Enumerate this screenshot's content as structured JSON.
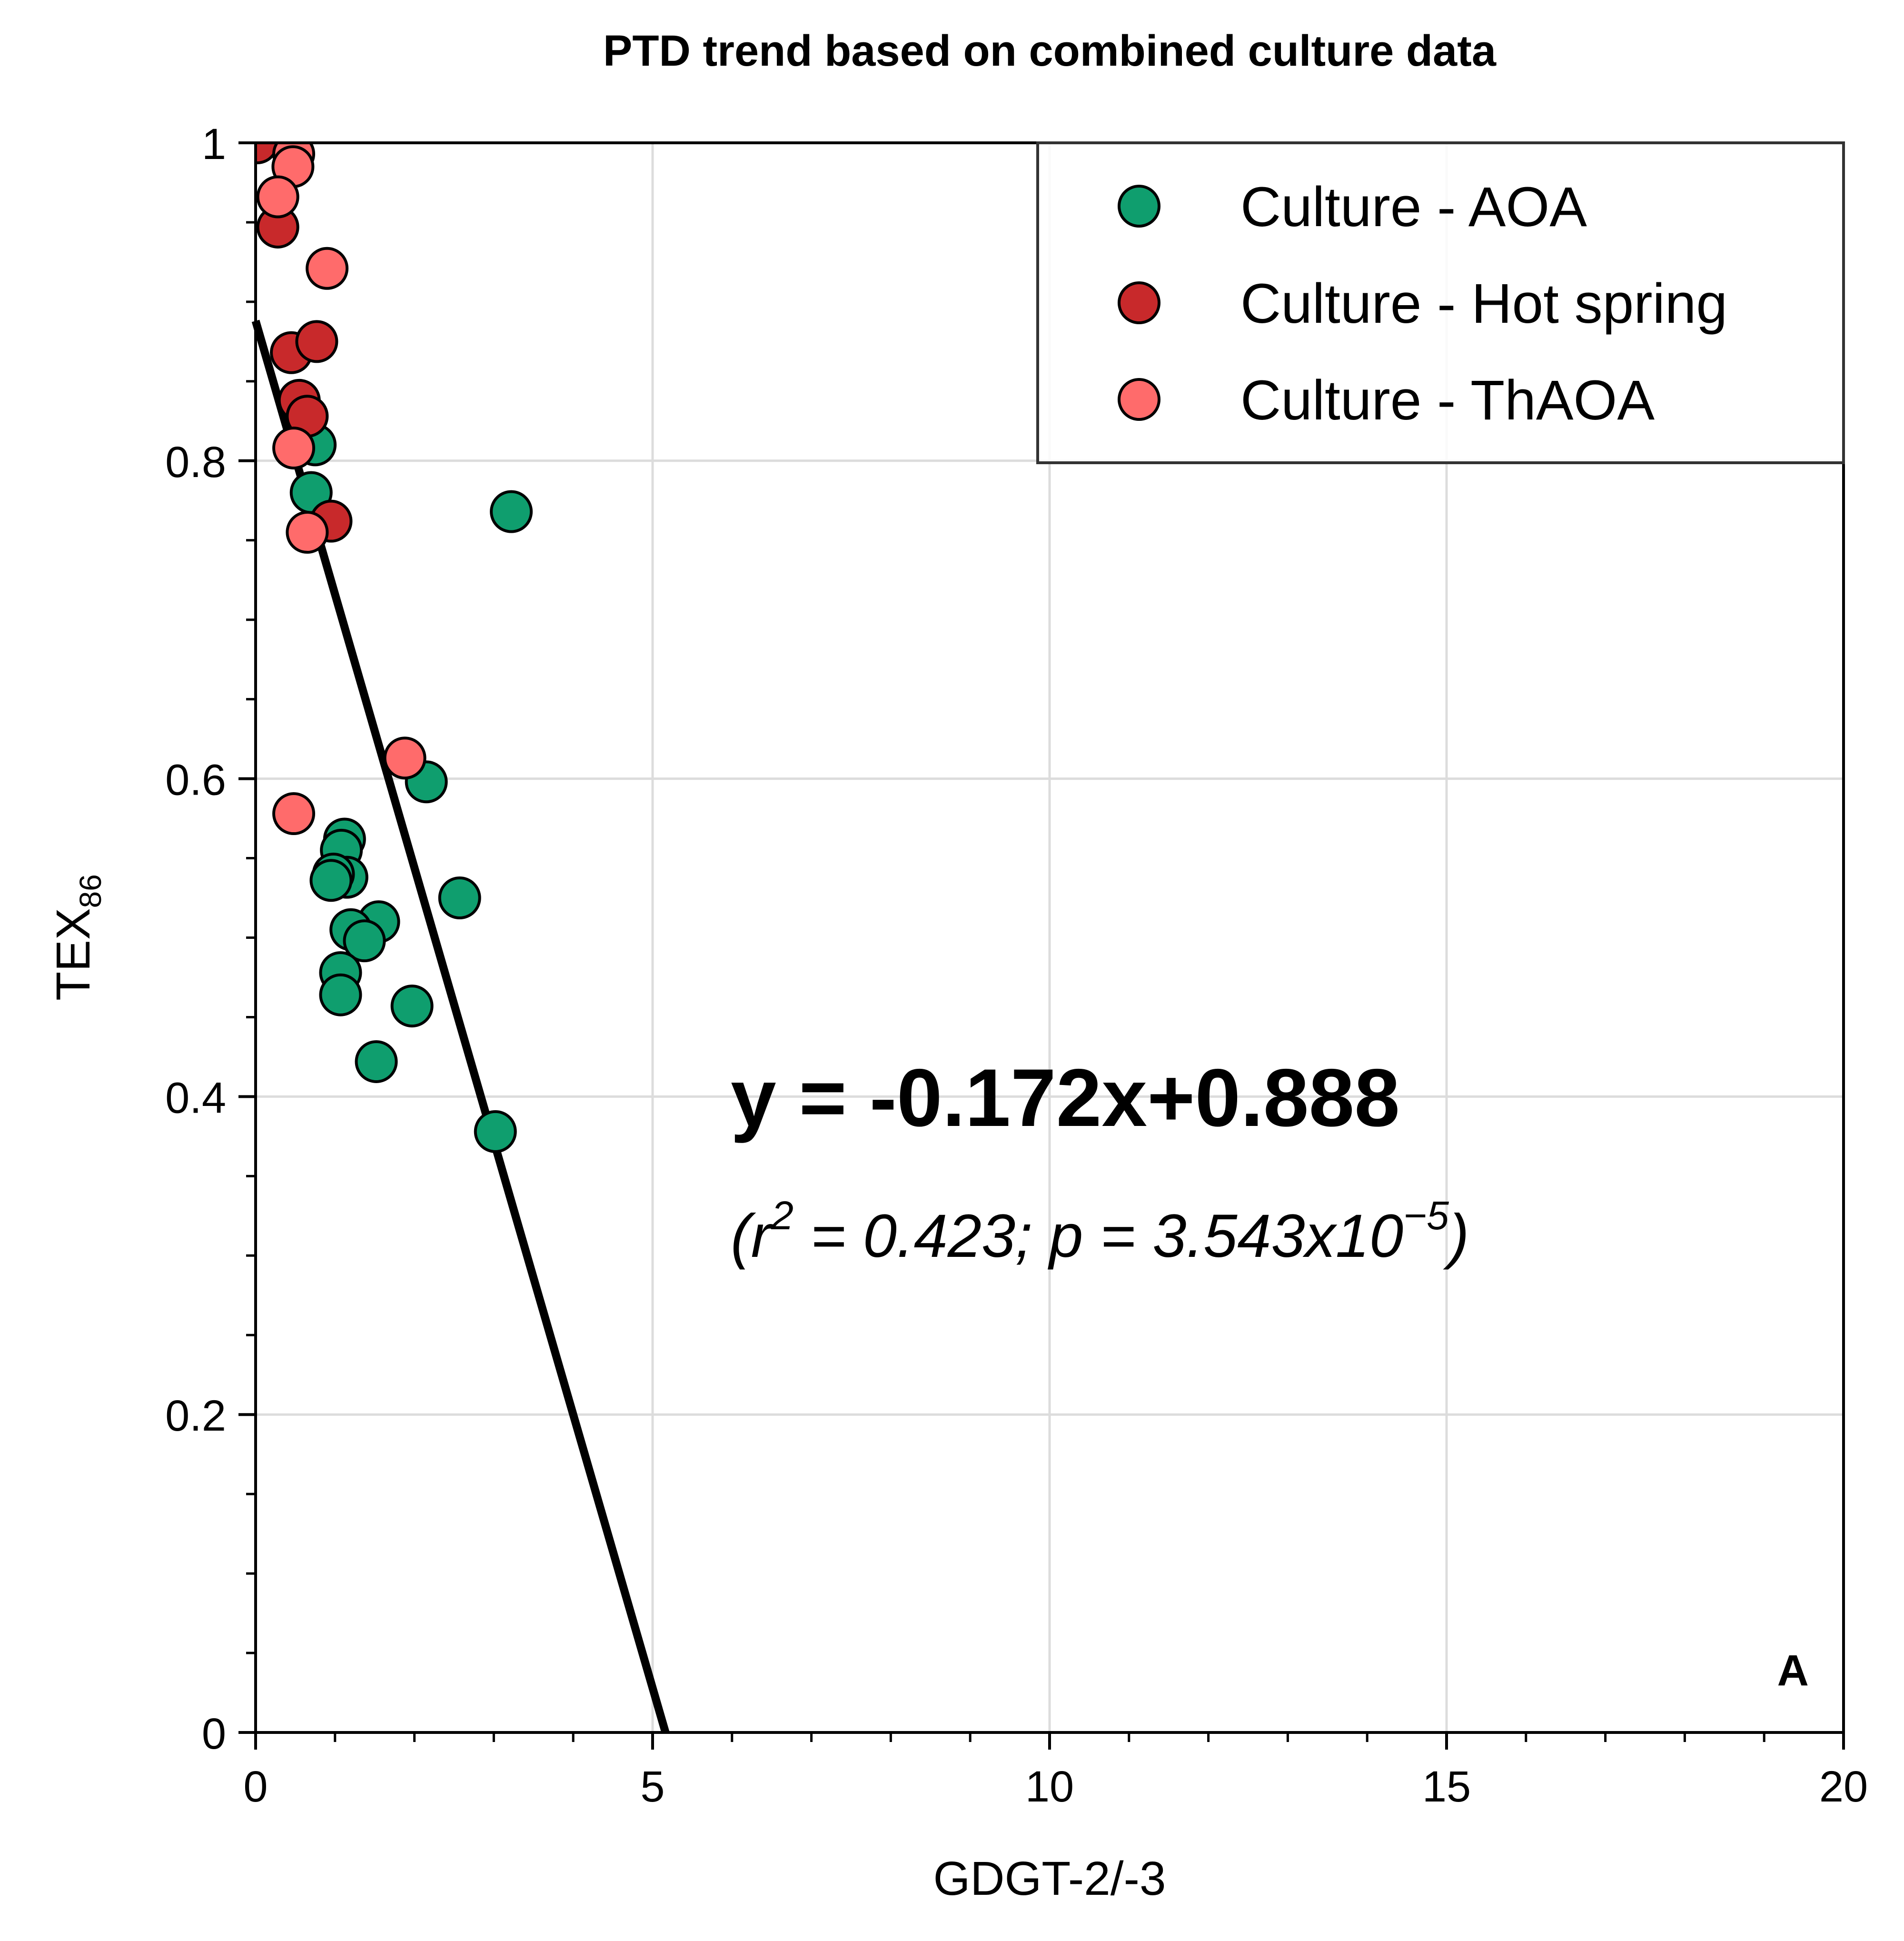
{
  "chart_data": {
    "type": "scatter",
    "title": "PTD trend based on combined culture data",
    "xlabel": "GDGT-2/-3",
    "ylabel": "TEX",
    "ylabel_sub": "86",
    "xlim": [
      0,
      20
    ],
    "ylim": [
      0,
      1
    ],
    "xticks": [
      0,
      5,
      10,
      15,
      20
    ],
    "xtick_labels": [
      "0",
      "5",
      "10",
      "15",
      "20"
    ],
    "yticks": [
      0,
      0.2,
      0.4,
      0.6,
      0.8,
      1
    ],
    "ytick_labels": [
      "0",
      "0.2",
      "0.4",
      "0.6",
      "0.8",
      "1"
    ],
    "grid": true,
    "legend_position": "top-right",
    "series": [
      {
        "name": "Culture - AOA",
        "color": "#0f9e6e",
        "points": [
          [
            0.75,
            0.81
          ],
          [
            0.7,
            0.78
          ],
          [
            3.22,
            0.768
          ],
          [
            2.15,
            0.598
          ],
          [
            1.12,
            0.562
          ],
          [
            1.08,
            0.555
          ],
          [
            1.15,
            0.538
          ],
          [
            0.98,
            0.54
          ],
          [
            0.95,
            0.536
          ],
          [
            2.57,
            0.525
          ],
          [
            1.55,
            0.51
          ],
          [
            1.2,
            0.505
          ],
          [
            1.37,
            0.498
          ],
          [
            1.07,
            0.478
          ],
          [
            1.07,
            0.464
          ],
          [
            1.97,
            0.457
          ],
          [
            1.52,
            0.422
          ],
          [
            3.02,
            0.378
          ]
        ]
      },
      {
        "name": "Culture - Hot spring",
        "color": "#c8292b",
        "points": [
          [
            0.02,
            1.0
          ],
          [
            0.28,
            0.947
          ],
          [
            0.45,
            0.868
          ],
          [
            0.77,
            0.875
          ],
          [
            0.55,
            0.838
          ],
          [
            0.65,
            0.828
          ],
          [
            0.95,
            0.762
          ]
        ]
      },
      {
        "name": "Culture - ThAOA",
        "color": "#ff6b6b",
        "points": [
          [
            0.48,
            0.993
          ],
          [
            0.47,
            0.985
          ],
          [
            0.28,
            0.966
          ],
          [
            0.9,
            0.921
          ],
          [
            0.48,
            0.808
          ],
          [
            0.65,
            0.755
          ],
          [
            1.88,
            0.613
          ],
          [
            0.48,
            0.578
          ]
        ]
      }
    ],
    "fit_line": {
      "slope": -0.172,
      "intercept": 0.888,
      "color": "#000000"
    },
    "annotation_equation": "y = -0.172x+0.888",
    "annotation_stats": {
      "open": "(r",
      "r_exp": "2",
      "mid": " = 0.423; p = 3.543x10",
      "p_exp": "−5",
      "close": ")"
    },
    "panel_label": "A"
  }
}
